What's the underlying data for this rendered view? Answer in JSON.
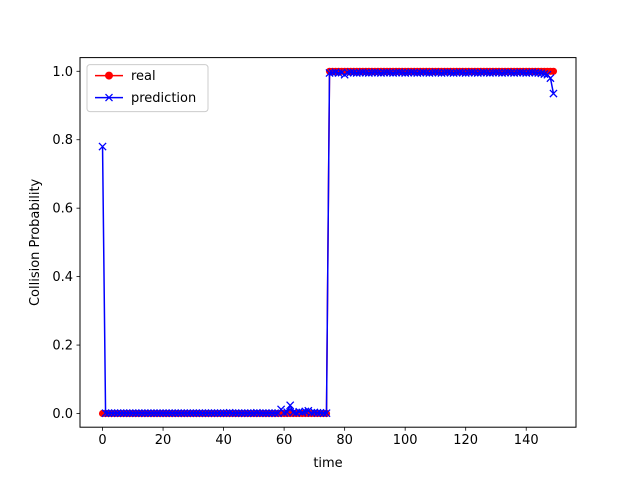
{
  "chart_data": {
    "type": "line",
    "title": "",
    "xlabel": "time",
    "ylabel": "Collision Probability",
    "xlim": [
      -7.45,
      156.45
    ],
    "ylim": [
      -0.04,
      1.04
    ],
    "xticks": [
      0,
      20,
      40,
      60,
      80,
      100,
      120,
      140
    ],
    "yticks": [
      0.0,
      0.2,
      0.4,
      0.6,
      0.8,
      1.0
    ],
    "xtick_labels": [
      "0",
      "20",
      "40",
      "60",
      "80",
      "100",
      "120",
      "140"
    ],
    "ytick_labels": [
      "0.0",
      "0.2",
      "0.4",
      "0.6",
      "0.8",
      "1.0"
    ],
    "legend_position": "upper-left",
    "series": [
      {
        "name": "real",
        "color": "#ff0000",
        "marker": "circle",
        "x_start": 0,
        "x_step": 1,
        "values": [
          0,
          0,
          0,
          0,
          0,
          0,
          0,
          0,
          0,
          0,
          0,
          0,
          0,
          0,
          0,
          0,
          0,
          0,
          0,
          0,
          0,
          0,
          0,
          0,
          0,
          0,
          0,
          0,
          0,
          0,
          0,
          0,
          0,
          0,
          0,
          0,
          0,
          0,
          0,
          0,
          0,
          0,
          0,
          0,
          0,
          0,
          0,
          0,
          0,
          0,
          0,
          0,
          0,
          0,
          0,
          0,
          0,
          0,
          0,
          0,
          0,
          0,
          0,
          0,
          0,
          0,
          0,
          0,
          0,
          0,
          0,
          0,
          0,
          0,
          0,
          1,
          1,
          1,
          1,
          1,
          1,
          1,
          1,
          1,
          1,
          1,
          1,
          1,
          1,
          1,
          1,
          1,
          1,
          1,
          1,
          1,
          1,
          1,
          1,
          1,
          1,
          1,
          1,
          1,
          1,
          1,
          1,
          1,
          1,
          1,
          1,
          1,
          1,
          1,
          1,
          1,
          1,
          1,
          1,
          1,
          1,
          1,
          1,
          1,
          1,
          1,
          1,
          1,
          1,
          1,
          1,
          1,
          1,
          1,
          1,
          1,
          1,
          1,
          1,
          1,
          1,
          1,
          1,
          1,
          1,
          1,
          1,
          1,
          1,
          1
        ]
      },
      {
        "name": "prediction",
        "color": "#0000ff",
        "marker": "x",
        "x_start": 0,
        "x_step": 1,
        "values": [
          0.78,
          0.001,
          0.001,
          0.001,
          0.001,
          0.001,
          0.001,
          0.001,
          0.001,
          0.001,
          0.001,
          0.001,
          0.001,
          0.001,
          0.001,
          0.001,
          0.001,
          0.001,
          0.001,
          0.001,
          0.001,
          0.001,
          0.001,
          0.001,
          0.001,
          0.001,
          0.001,
          0.001,
          0.001,
          0.001,
          0.001,
          0.001,
          0.001,
          0.001,
          0.001,
          0.001,
          0.001,
          0.001,
          0.001,
          0.001,
          0.001,
          0.001,
          0.002,
          0.001,
          0.001,
          0.001,
          0.001,
          0.001,
          0.001,
          0.001,
          0.001,
          0.002,
          0.001,
          0.001,
          0.001,
          0.001,
          0.001,
          0.001,
          0.001,
          0.012,
          0.002,
          0.004,
          0.024,
          0.003,
          0.002,
          0.005,
          0.003,
          0.006,
          0.008,
          0.002,
          0.003,
          0.002,
          0.002,
          0.001,
          0.001,
          0.995,
          0.996,
          0.997,
          0.995,
          0.996,
          0.99,
          0.996,
          0.997,
          0.996,
          0.995,
          0.996,
          0.997,
          0.996,
          0.995,
          0.996,
          0.997,
          0.996,
          0.995,
          0.996,
          0.997,
          0.996,
          0.995,
          0.996,
          0.997,
          0.996,
          0.995,
          0.996,
          0.997,
          0.996,
          0.995,
          0.996,
          0.997,
          0.996,
          0.995,
          0.996,
          0.997,
          0.996,
          0.995,
          0.996,
          0.997,
          0.996,
          0.995,
          0.996,
          0.997,
          0.996,
          0.995,
          0.996,
          0.997,
          0.996,
          0.995,
          0.996,
          0.997,
          0.996,
          0.995,
          0.996,
          0.997,
          0.996,
          0.995,
          0.996,
          0.997,
          0.996,
          0.995,
          0.996,
          0.997,
          0.996,
          0.995,
          0.996,
          0.997,
          0.996,
          0.995,
          0.994,
          0.992,
          0.99,
          0.98,
          0.935
        ]
      }
    ]
  }
}
